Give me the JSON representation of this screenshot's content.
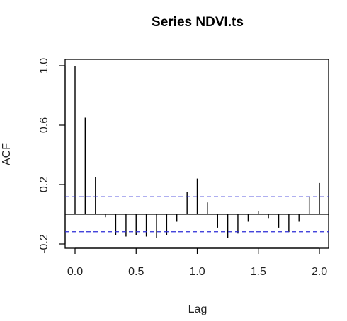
{
  "chart_data": {
    "type": "bar",
    "title": "Series  NDVI.ts",
    "xlabel": "Lag",
    "ylabel": "ACF",
    "xlim": [
      0,
      2.05
    ],
    "ylim": [
      -0.22,
      1.04
    ],
    "x_ticks": [
      "0.0",
      "0.5",
      "1.0",
      "1.5",
      "2.0"
    ],
    "x_tick_values": [
      0,
      0.5,
      1.0,
      1.5,
      2.0
    ],
    "y_ticks": [
      "-0.2",
      "0.2",
      "0.6",
      "1.0"
    ],
    "y_tick_values": [
      -0.2,
      0.2,
      0.6,
      1.0
    ],
    "grid": false,
    "confidence_band": 0.118,
    "zero_line": 0,
    "x": [
      0.0,
      0.083,
      0.167,
      0.25,
      0.333,
      0.417,
      0.5,
      0.583,
      0.667,
      0.75,
      0.833,
      0.917,
      1.0,
      1.083,
      1.167,
      1.25,
      1.333,
      1.417,
      1.5,
      1.583,
      1.667,
      1.75,
      1.833,
      1.917,
      2.0
    ],
    "values": [
      1.0,
      0.65,
      0.25,
      -0.02,
      -0.14,
      -0.15,
      -0.14,
      -0.15,
      -0.16,
      -0.14,
      -0.05,
      0.15,
      0.24,
      0.08,
      -0.09,
      -0.16,
      -0.13,
      -0.05,
      0.02,
      -0.03,
      -0.09,
      -0.12,
      -0.05,
      0.12,
      0.21
    ],
    "colors": {
      "bars": "#000000",
      "band": "#2b2bd6",
      "zero": "#000000",
      "box": "#000000"
    }
  }
}
